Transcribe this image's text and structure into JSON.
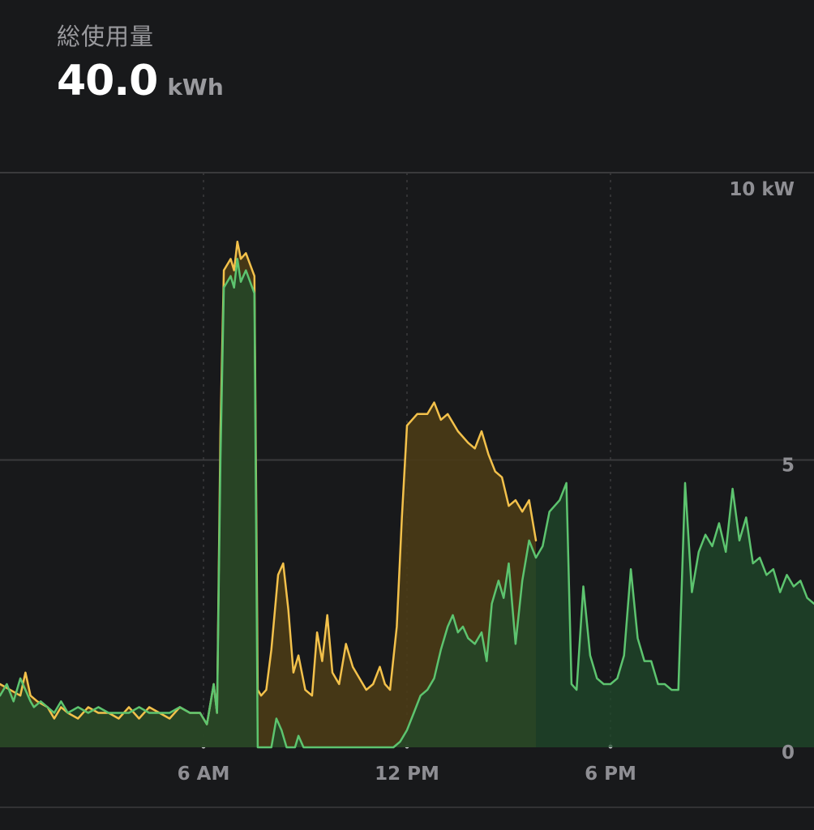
{
  "header": {
    "title": "総使用量",
    "total_value": "40.0",
    "total_unit": "kWh"
  },
  "colors": {
    "background": "#18191b",
    "grid": "#3a3a3c",
    "solar_line": "#5dc46f",
    "solar_fill": "#1f4a2b",
    "grid_line": "#f3c14b",
    "grid_fill": "#4a3b16",
    "tick_text": "#8e8e93"
  },
  "chart_data": {
    "type": "area",
    "x_unit": "hour",
    "xlim": [
      0,
      24
    ],
    "ylim": [
      0,
      10
    ],
    "y_ticks": [
      {
        "value": 10,
        "label": "10 kW"
      },
      {
        "value": 5,
        "label": "5"
      },
      {
        "value": 0,
        "label": "0"
      }
    ],
    "x_ticks": [
      {
        "value": 6,
        "label": "6 AM"
      },
      {
        "value": 12,
        "label": "12 PM"
      },
      {
        "value": 18,
        "label": "6 PM"
      }
    ],
    "grid": true,
    "series": [
      {
        "key": "total",
        "style": "yellow",
        "points": [
          [
            0,
            1.1
          ],
          [
            0.3,
            1.0
          ],
          [
            0.6,
            0.9
          ],
          [
            0.75,
            1.3
          ],
          [
            0.9,
            0.9
          ],
          [
            1.1,
            0.8
          ],
          [
            1.4,
            0.7
          ],
          [
            1.6,
            0.5
          ],
          [
            1.8,
            0.7
          ],
          [
            2.0,
            0.6
          ],
          [
            2.3,
            0.5
          ],
          [
            2.6,
            0.7
          ],
          [
            2.9,
            0.6
          ],
          [
            3.2,
            0.6
          ],
          [
            3.5,
            0.5
          ],
          [
            3.8,
            0.7
          ],
          [
            4.1,
            0.5
          ],
          [
            4.4,
            0.7
          ],
          [
            4.7,
            0.6
          ],
          [
            5.0,
            0.5
          ],
          [
            5.3,
            0.7
          ],
          [
            5.6,
            0.6
          ],
          [
            5.9,
            0.6
          ],
          [
            6.1,
            0.4
          ],
          [
            6.3,
            1.1
          ],
          [
            6.4,
            0.6
          ],
          [
            6.5,
            5.5
          ],
          [
            6.6,
            8.3
          ],
          [
            6.8,
            8.5
          ],
          [
            6.9,
            8.3
          ],
          [
            7.0,
            8.8
          ],
          [
            7.1,
            8.5
          ],
          [
            7.25,
            8.6
          ],
          [
            7.5,
            8.2
          ],
          [
            7.6,
            1.0
          ],
          [
            7.7,
            0.9
          ],
          [
            7.85,
            1.0
          ],
          [
            8.0,
            1.7
          ],
          [
            8.2,
            3.0
          ],
          [
            8.35,
            3.2
          ],
          [
            8.5,
            2.4
          ],
          [
            8.65,
            1.3
          ],
          [
            8.8,
            1.6
          ],
          [
            9.0,
            1.0
          ],
          [
            9.2,
            0.9
          ],
          [
            9.35,
            2.0
          ],
          [
            9.5,
            1.5
          ],
          [
            9.65,
            2.3
          ],
          [
            9.8,
            1.3
          ],
          [
            10.0,
            1.1
          ],
          [
            10.2,
            1.8
          ],
          [
            10.4,
            1.4
          ],
          [
            10.6,
            1.2
          ],
          [
            10.8,
            1.0
          ],
          [
            11.0,
            1.1
          ],
          [
            11.2,
            1.4
          ],
          [
            11.35,
            1.1
          ],
          [
            11.5,
            1.0
          ],
          [
            11.7,
            2.1
          ],
          [
            11.85,
            4.0
          ],
          [
            12.0,
            5.6
          ],
          [
            12.3,
            5.8
          ],
          [
            12.6,
            5.8
          ],
          [
            12.8,
            6.0
          ],
          [
            13.0,
            5.7
          ],
          [
            13.2,
            5.8
          ],
          [
            13.5,
            5.5
          ],
          [
            13.8,
            5.3
          ],
          [
            14.0,
            5.2
          ],
          [
            14.2,
            5.5
          ],
          [
            14.4,
            5.1
          ],
          [
            14.6,
            4.8
          ],
          [
            14.8,
            4.7
          ],
          [
            15.0,
            4.2
          ],
          [
            15.2,
            4.3
          ],
          [
            15.4,
            4.1
          ],
          [
            15.6,
            4.3
          ],
          [
            15.8,
            3.6
          ]
        ]
      },
      {
        "key": "solar",
        "style": "green",
        "points": [
          [
            0,
            0.9
          ],
          [
            0.2,
            1.1
          ],
          [
            0.4,
            0.8
          ],
          [
            0.6,
            1.2
          ],
          [
            0.75,
            1.0
          ],
          [
            0.9,
            0.8
          ],
          [
            1.0,
            0.7
          ],
          [
            1.2,
            0.8
          ],
          [
            1.4,
            0.7
          ],
          [
            1.6,
            0.6
          ],
          [
            1.8,
            0.8
          ],
          [
            2.0,
            0.6
          ],
          [
            2.3,
            0.7
          ],
          [
            2.6,
            0.6
          ],
          [
            2.9,
            0.7
          ],
          [
            3.2,
            0.6
          ],
          [
            3.5,
            0.6
          ],
          [
            3.8,
            0.6
          ],
          [
            4.1,
            0.7
          ],
          [
            4.4,
            0.6
          ],
          [
            4.7,
            0.6
          ],
          [
            5.0,
            0.6
          ],
          [
            5.3,
            0.7
          ],
          [
            5.6,
            0.6
          ],
          [
            5.9,
            0.6
          ],
          [
            6.1,
            0.4
          ],
          [
            6.3,
            1.1
          ],
          [
            6.4,
            0.6
          ],
          [
            6.5,
            5.0
          ],
          [
            6.6,
            8.0
          ],
          [
            6.8,
            8.2
          ],
          [
            6.9,
            8.0
          ],
          [
            7.0,
            8.5
          ],
          [
            7.1,
            8.1
          ],
          [
            7.25,
            8.3
          ],
          [
            7.5,
            7.9
          ],
          [
            7.6,
            0.0
          ],
          [
            8.0,
            0.0
          ],
          [
            8.15,
            0.5
          ],
          [
            8.3,
            0.3
          ],
          [
            8.45,
            0.0
          ],
          [
            8.7,
            0.0
          ],
          [
            8.8,
            0.2
          ],
          [
            8.95,
            0.0
          ],
          [
            11.6,
            0.0
          ],
          [
            11.8,
            0.1
          ],
          [
            12.0,
            0.3
          ],
          [
            12.2,
            0.6
          ],
          [
            12.4,
            0.9
          ],
          [
            12.6,
            1.0
          ],
          [
            12.8,
            1.2
          ],
          [
            13.0,
            1.7
          ],
          [
            13.2,
            2.1
          ],
          [
            13.35,
            2.3
          ],
          [
            13.5,
            2.0
          ],
          [
            13.65,
            2.1
          ],
          [
            13.8,
            1.9
          ],
          [
            14.0,
            1.8
          ],
          [
            14.2,
            2.0
          ],
          [
            14.35,
            1.5
          ],
          [
            14.5,
            2.5
          ],
          [
            14.7,
            2.9
          ],
          [
            14.85,
            2.6
          ],
          [
            15.0,
            3.2
          ],
          [
            15.2,
            1.8
          ],
          [
            15.4,
            2.9
          ],
          [
            15.6,
            3.6
          ],
          [
            15.8,
            3.3
          ],
          [
            16.0,
            3.5
          ],
          [
            16.2,
            4.1
          ],
          [
            16.5,
            4.3
          ],
          [
            16.7,
            4.6
          ],
          [
            16.85,
            1.1
          ],
          [
            17.0,
            1.0
          ],
          [
            17.2,
            2.8
          ],
          [
            17.4,
            1.6
          ],
          [
            17.6,
            1.2
          ],
          [
            17.8,
            1.1
          ],
          [
            18.0,
            1.1
          ],
          [
            18.2,
            1.2
          ],
          [
            18.4,
            1.6
          ],
          [
            18.6,
            3.1
          ],
          [
            18.8,
            1.9
          ],
          [
            19.0,
            1.5
          ],
          [
            19.2,
            1.5
          ],
          [
            19.4,
            1.1
          ],
          [
            19.6,
            1.1
          ],
          [
            19.8,
            1.0
          ],
          [
            20.0,
            1.0
          ],
          [
            20.2,
            4.6
          ],
          [
            20.4,
            2.7
          ],
          [
            20.6,
            3.4
          ],
          [
            20.8,
            3.7
          ],
          [
            21.0,
            3.5
          ],
          [
            21.2,
            3.9
          ],
          [
            21.4,
            3.4
          ],
          [
            21.6,
            4.5
          ],
          [
            21.8,
            3.6
          ],
          [
            22.0,
            4.0
          ],
          [
            22.2,
            3.2
          ],
          [
            22.4,
            3.3
          ],
          [
            22.6,
            3.0
          ],
          [
            22.8,
            3.1
          ],
          [
            23.0,
            2.7
          ],
          [
            23.2,
            3.0
          ],
          [
            23.4,
            2.8
          ],
          [
            23.6,
            2.9
          ],
          [
            23.8,
            2.6
          ],
          [
            24.0,
            2.5
          ]
        ]
      }
    ]
  }
}
